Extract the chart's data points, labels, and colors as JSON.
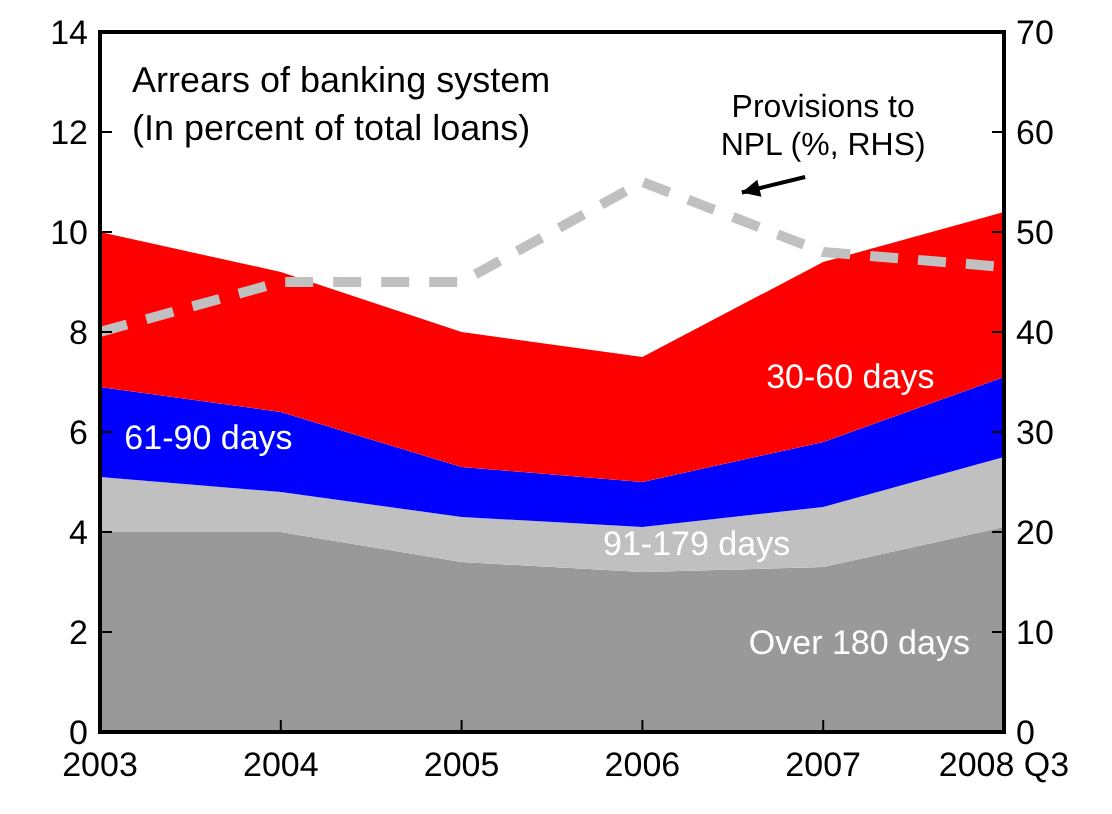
{
  "chart_data": {
    "type": "area",
    "stacked": true,
    "title": "Arrears of banking system",
    "subtitle": "(In percent of total loans)",
    "categories": [
      "2003",
      "2004",
      "2005",
      "2006",
      "2007",
      "2008 Q3"
    ],
    "series": [
      {
        "name": "Over 180 days",
        "color": "#999999",
        "values": [
          4.0,
          4.0,
          3.4,
          3.2,
          3.3,
          4.1
        ]
      },
      {
        "name": "91-179 days",
        "color": "#c0c0c0",
        "values": [
          1.1,
          0.8,
          0.9,
          0.9,
          1.2,
          1.4
        ]
      },
      {
        "name": "61-90 days",
        "color": "#0000ff",
        "values": [
          1.8,
          1.6,
          1.0,
          0.9,
          1.3,
          1.6
        ]
      },
      {
        "name": "30-60 days",
        "color": "#ff0000",
        "values": [
          3.1,
          2.8,
          2.7,
          2.5,
          3.6,
          3.3
        ]
      },
      {
        "name": "Provisions to NPL (%, RHS)",
        "type": "line",
        "axis": "y2",
        "color": "#c0c0c0",
        "line_style": "dashed",
        "marker": "none",
        "values": [
          40,
          45,
          45,
          55,
          48,
          46.5
        ]
      }
    ],
    "ylim": [
      0,
      14
    ],
    "yticks": [
      0,
      2,
      4,
      6,
      8,
      10,
      12,
      14
    ],
    "y2lim": [
      0,
      70
    ],
    "y2ticks": [
      0,
      10,
      20,
      30,
      40,
      50,
      60,
      70
    ]
  }
}
